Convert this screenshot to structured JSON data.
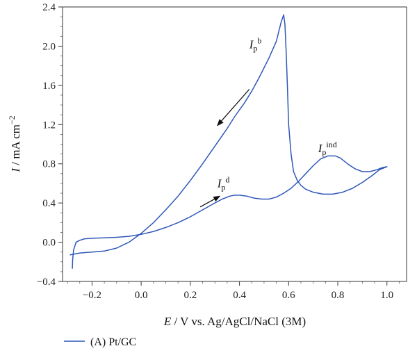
{
  "chart_data": {
    "type": "line",
    "xlabel_italic": "E",
    "xlabel_rest": " / V vs. Ag/AgCl/NaCl (3M)",
    "ylabel_italic": "I",
    "ylabel_rest": " / mA cm",
    "ylabel_sup": "−2",
    "xlim": [
      -0.32,
      1.08
    ],
    "ylim": [
      -0.4,
      2.4
    ],
    "x_ticks": [
      "−0.2",
      "0.0",
      "0.2",
      "0.4",
      "0.6",
      "0.8",
      "1.0"
    ],
    "x_tick_values": [
      -0.2,
      0.0,
      0.2,
      0.4,
      0.6,
      0.8,
      1.0
    ],
    "y_ticks": [
      "−0.4",
      "0.0",
      "0.4",
      "0.8",
      "1.2",
      "1.6",
      "2.0",
      "2.4"
    ],
    "y_tick_values": [
      -0.4,
      0.0,
      0.4,
      0.8,
      1.2,
      1.6,
      2.0,
      2.4
    ],
    "series": [
      {
        "name": "(A) Pt/GC",
        "color": "#2f57b8",
        "x": [
          -0.28,
          -0.279,
          -0.275,
          -0.265,
          -0.25,
          -0.23,
          -0.2,
          -0.15,
          -0.1,
          -0.05,
          0.0,
          0.05,
          0.1,
          0.15,
          0.2,
          0.25,
          0.3,
          0.33,
          0.36,
          0.38,
          0.4,
          0.43,
          0.46,
          0.49,
          0.52,
          0.55,
          0.58,
          0.61,
          0.64,
          0.67,
          0.7,
          0.73,
          0.76,
          0.79,
          0.81,
          0.84,
          0.87,
          0.9,
          0.93,
          0.96,
          0.98,
          1.0,
          0.97,
          0.94,
          0.9,
          0.86,
          0.82,
          0.78,
          0.74,
          0.7,
          0.67,
          0.65,
          0.635,
          0.62,
          0.61,
          0.6,
          0.595,
          0.59,
          0.585,
          0.58,
          0.57,
          0.55,
          0.52,
          0.48,
          0.45,
          0.42,
          0.38,
          0.35,
          0.3,
          0.25,
          0.2,
          0.15,
          0.1,
          0.05,
          0.0,
          -0.05,
          -0.1,
          -0.15,
          -0.2,
          -0.25,
          -0.29
        ],
        "y": [
          -0.27,
          -0.18,
          -0.08,
          0.0,
          0.02,
          0.035,
          0.04,
          0.045,
          0.05,
          0.06,
          0.08,
          0.11,
          0.15,
          0.2,
          0.26,
          0.33,
          0.4,
          0.44,
          0.47,
          0.48,
          0.48,
          0.47,
          0.45,
          0.44,
          0.44,
          0.46,
          0.5,
          0.55,
          0.62,
          0.7,
          0.78,
          0.85,
          0.88,
          0.88,
          0.86,
          0.8,
          0.75,
          0.72,
          0.72,
          0.74,
          0.76,
          0.77,
          0.74,
          0.68,
          0.61,
          0.55,
          0.51,
          0.49,
          0.49,
          0.51,
          0.54,
          0.58,
          0.63,
          0.72,
          0.9,
          1.2,
          1.6,
          1.95,
          2.22,
          2.32,
          2.25,
          2.05,
          1.88,
          1.68,
          1.54,
          1.42,
          1.28,
          1.16,
          0.98,
          0.8,
          0.63,
          0.47,
          0.33,
          0.2,
          0.09,
          0.0,
          -0.06,
          -0.09,
          -0.1,
          -0.11,
          -0.13
        ]
      }
    ],
    "arrows": [
      {
        "from": [
          0.44,
          1.56
        ],
        "to": [
          0.31,
          1.19
        ]
      },
      {
        "from": [
          0.24,
          0.36
        ],
        "to": [
          0.32,
          0.47
        ]
      }
    ],
    "annotations": [
      {
        "name": "ip-b",
        "base": "I",
        "sub": "p",
        "sup": "b",
        "x": 0.44,
        "y": 1.98
      },
      {
        "name": "ip-ind",
        "base": "I",
        "sub": "p",
        "sup": "ind",
        "x": 0.72,
        "y": 0.92
      },
      {
        "name": "ip-d",
        "base": "I",
        "sub": "p",
        "sup": "d",
        "x": 0.31,
        "y": 0.56
      }
    ],
    "legend": {
      "label": "(A) Pt/GC",
      "placement": "bottom-left"
    }
  }
}
